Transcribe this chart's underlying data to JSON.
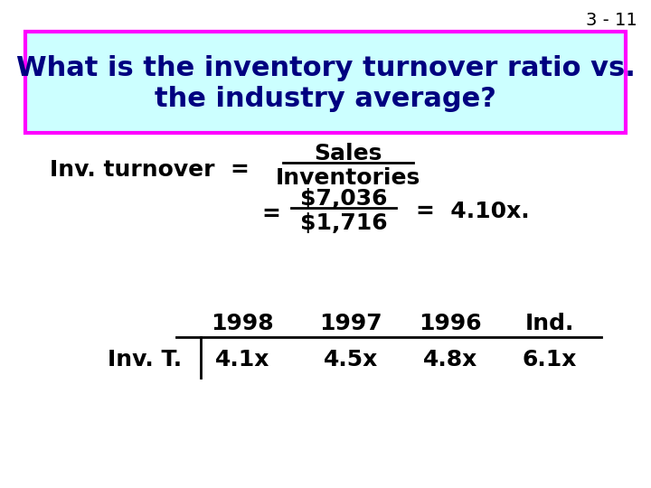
{
  "slide_number": "3 - 11",
  "title_line1": "What is the inventory turnover ratio vs.",
  "title_line2": "the industry average?",
  "title_bg_color": "#ccffff",
  "title_border_color": "#ff00ff",
  "title_text_color": "#000080",
  "body_bg_color": "#ffffff",
  "formula_numerator": "Sales",
  "formula_denominator": "Inventories",
  "formula_num2": "$7,036",
  "formula_den2": "$1,716",
  "formula_result": "=  4.10x.",
  "table_headers": [
    "1998",
    "1997",
    "1996",
    "Ind."
  ],
  "table_row_label": "Inv. T.",
  "table_values": [
    "4.1x",
    "4.5x",
    "4.8x",
    "6.1x"
  ],
  "text_color": "#000000",
  "slide_num_color": "#000000",
  "font_size_slide_num": 14,
  "font_size_title": 22,
  "font_size_body": 18,
  "font_size_table": 18
}
